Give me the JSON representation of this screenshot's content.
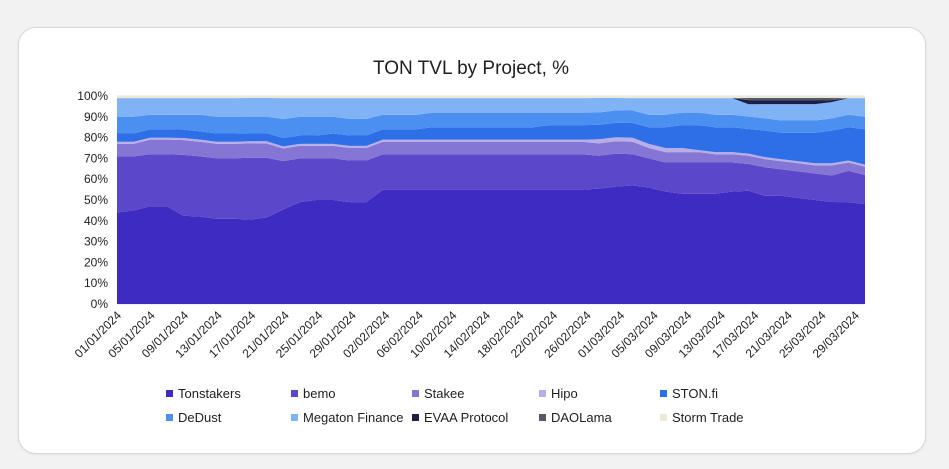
{
  "chart_data": {
    "type": "area",
    "stacking": "percent",
    "title": "TON TVL by Project, %",
    "xlabel": "",
    "ylabel": "",
    "ylim": [
      0,
      100
    ],
    "y_ticks": [
      "0%",
      "10%",
      "20%",
      "30%",
      "40%",
      "50%",
      "60%",
      "70%",
      "80%",
      "90%",
      "100%"
    ],
    "x_tick_labels": [
      "01/01/2024",
      "05/01/2024",
      "09/01/2024",
      "13/01/2024",
      "17/01/2024",
      "21/01/2024",
      "25/01/2024",
      "29/01/2024",
      "02/02/2024",
      "06/02/2024",
      "10/02/2024",
      "14/02/2024",
      "18/02/2024",
      "22/02/2024",
      "26/02/2024",
      "01/03/2024",
      "05/03/2024",
      "09/03/2024",
      "13/03/2024",
      "17/03/2024",
      "21/03/2024",
      "25/03/2024",
      "29/03/2024"
    ],
    "grid": true,
    "legend_position": "bottom",
    "dates": [
      "01/01/2024",
      "03/01/2024",
      "05/01/2024",
      "07/01/2024",
      "09/01/2024",
      "11/01/2024",
      "13/01/2024",
      "15/01/2024",
      "17/01/2024",
      "19/01/2024",
      "21/01/2024",
      "23/01/2024",
      "25/01/2024",
      "27/01/2024",
      "29/01/2024",
      "31/01/2024",
      "02/02/2024",
      "04/02/2024",
      "06/02/2024",
      "08/02/2024",
      "10/02/2024",
      "12/02/2024",
      "14/02/2024",
      "16/02/2024",
      "18/02/2024",
      "20/02/2024",
      "22/02/2024",
      "24/02/2024",
      "26/02/2024",
      "28/02/2024",
      "01/03/2024",
      "03/03/2024",
      "05/03/2024",
      "07/03/2024",
      "09/03/2024",
      "11/03/2024",
      "13/03/2024",
      "15/03/2024",
      "17/03/2024",
      "19/03/2024",
      "21/03/2024",
      "23/03/2024",
      "25/03/2024",
      "27/03/2024",
      "29/03/2024",
      "31/03/2024"
    ],
    "series": [
      {
        "name": "Tonstakers",
        "color": "#3e2bc2",
        "values": [
          44,
          45,
          47,
          47,
          42,
          42,
          41,
          41,
          41,
          42,
          45,
          49,
          50,
          50,
          49,
          49,
          55,
          55,
          55,
          55,
          55,
          55,
          55,
          55,
          55,
          55,
          55,
          55,
          55,
          56,
          57,
          57,
          56,
          54,
          53,
          53,
          53,
          54,
          55,
          53,
          53,
          52,
          51,
          50,
          49,
          48
        ]
      },
      {
        "name": "bemo",
        "color": "#5b47c9",
        "values": [
          27,
          26,
          25,
          25,
          29,
          29,
          29,
          29,
          30,
          29,
          23,
          21,
          20,
          20,
          20,
          20,
          17,
          17,
          17,
          17,
          17,
          17,
          17,
          17,
          17,
          17,
          17,
          17,
          17,
          16,
          16,
          15,
          14,
          14,
          15,
          15,
          15,
          14,
          13,
          14,
          13,
          13,
          13,
          13,
          15,
          14
        ]
      },
      {
        "name": "Stakee",
        "color": "#8576d6",
        "values": [
          6,
          6,
          7,
          7,
          7,
          7,
          7,
          7,
          7,
          7,
          6,
          6,
          6,
          6,
          6,
          6,
          6,
          6,
          6,
          6,
          6,
          6,
          6,
          6,
          6,
          6,
          6,
          6,
          6,
          6,
          6,
          6,
          5,
          5,
          5,
          5,
          4,
          4,
          4,
          4,
          4,
          4,
          4,
          5,
          4,
          4
        ]
      },
      {
        "name": "Hipo",
        "color": "#b7aee8",
        "values": [
          1,
          1,
          1,
          1,
          1,
          1,
          1,
          1,
          1,
          1,
          1,
          1,
          1,
          1,
          1,
          1,
          1,
          1,
          1,
          1,
          1,
          1,
          1,
          1,
          1,
          1,
          1,
          1,
          1,
          2,
          2,
          2,
          2,
          2,
          2,
          1,
          1,
          1,
          1,
          1,
          1,
          1,
          1,
          1,
          1,
          1
        ]
      },
      {
        "name": "STON.fi",
        "color": "#2e6ee6",
        "values": [
          4,
          4,
          4,
          4,
          4,
          4,
          4,
          4,
          4,
          4,
          4,
          4,
          4,
          5,
          5,
          5,
          5,
          5,
          5,
          6,
          6,
          6,
          6,
          6,
          6,
          6,
          7,
          7,
          7,
          7,
          7,
          7,
          8,
          10,
          11,
          12,
          12,
          12,
          12,
          13,
          13,
          14,
          15,
          16,
          16,
          17
        ]
      },
      {
        "name": "DeDust",
        "color": "#4b8ff0",
        "values": [
          8,
          8,
          7,
          7,
          7,
          8,
          8,
          8,
          8,
          8,
          9,
          9,
          9,
          8,
          8,
          8,
          7,
          7,
          7,
          7,
          7,
          7,
          7,
          7,
          7,
          7,
          6,
          6,
          6,
          6,
          6,
          6,
          6,
          6,
          6,
          6,
          6,
          6,
          6,
          6,
          6,
          6,
          6,
          6,
          6,
          6
        ]
      },
      {
        "name": "Megaton Finance",
        "color": "#7fb3f5",
        "values": [
          9,
          9,
          8,
          8,
          8,
          8,
          9,
          9,
          9,
          9,
          10,
          9,
          9,
          9,
          10,
          10,
          8,
          8,
          8,
          7,
          7,
          7,
          7,
          7,
          7,
          7,
          7,
          7,
          7,
          7,
          6,
          6,
          8,
          8,
          7,
          7,
          8,
          8,
          6,
          7,
          8,
          8,
          8,
          8,
          8,
          9
        ]
      },
      {
        "name": "EVAA Protocol",
        "color": "#1c1f45",
        "values": [
          0,
          0,
          0,
          0,
          0,
          0,
          0,
          0,
          0,
          0,
          0,
          0,
          0,
          0,
          0,
          0,
          0,
          0,
          0,
          0,
          0,
          0,
          0,
          0,
          0,
          0,
          0,
          0,
          0,
          0,
          0,
          0,
          0,
          0,
          0,
          0,
          0,
          0,
          2,
          2,
          2,
          2,
          2,
          1,
          0,
          0
        ]
      },
      {
        "name": "DAOLama",
        "color": "#55596b",
        "values": [
          0,
          0,
          0,
          0,
          0,
          0,
          0,
          0,
          0,
          0,
          0,
          0,
          0,
          0,
          0,
          0,
          0,
          0,
          0,
          0,
          0,
          0,
          0,
          0,
          0,
          0,
          0,
          0,
          0,
          0,
          0,
          0,
          0,
          0,
          0,
          0,
          0,
          0,
          1,
          1,
          1,
          1,
          1,
          1,
          0,
          0
        ]
      },
      {
        "name": "Storm Trade",
        "color": "#ece9d6",
        "values": [
          1,
          1,
          1,
          1,
          1,
          1,
          1,
          1,
          1,
          1,
          1,
          1,
          1,
          1,
          1,
          1,
          1,
          1,
          1,
          1,
          1,
          1,
          1,
          1,
          1,
          1,
          1,
          1,
          1,
          1,
          1,
          1,
          1,
          1,
          1,
          1,
          1,
          1,
          1,
          1,
          1,
          1,
          1,
          1,
          1,
          1
        ]
      }
    ]
  }
}
